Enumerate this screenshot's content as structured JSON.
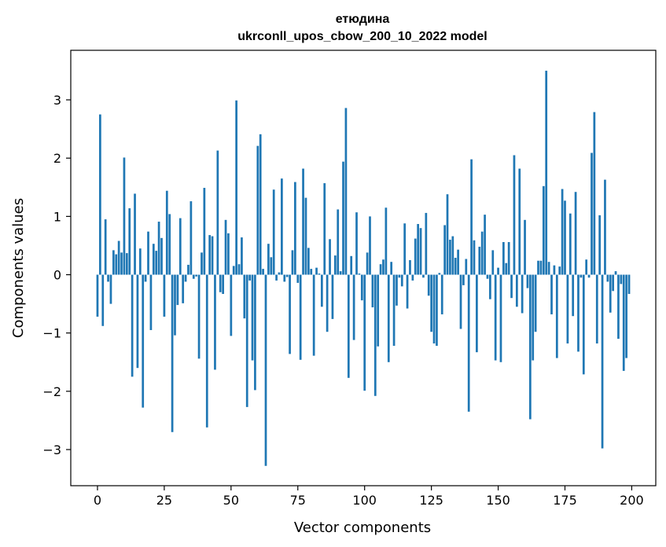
{
  "chart_data": {
    "type": "bar",
    "title_line1": "етюдина",
    "title_line2": "ukrconll_upos_cbow_200_10_2022 model",
    "xlabel": "Vector components",
    "ylabel": "Components values",
    "xlim": [
      -10,
      209
    ],
    "ylim": [
      -3.62,
      3.85
    ],
    "xticks": [
      {
        "value": 0,
        "label": "0"
      },
      {
        "value": 25,
        "label": "25"
      },
      {
        "value": 50,
        "label": "50"
      },
      {
        "value": 75,
        "label": "75"
      },
      {
        "value": 100,
        "label": "100"
      },
      {
        "value": 125,
        "label": "125"
      },
      {
        "value": 150,
        "label": "150"
      },
      {
        "value": 175,
        "label": "175"
      },
      {
        "value": 200,
        "label": "200"
      }
    ],
    "yticks": [
      {
        "value": -3,
        "label": "−3"
      },
      {
        "value": -2,
        "label": "−2"
      },
      {
        "value": -1,
        "label": "−1"
      },
      {
        "value": 0,
        "label": "0"
      },
      {
        "value": 1,
        "label": "1"
      },
      {
        "value": 2,
        "label": "2"
      },
      {
        "value": 3,
        "label": "3"
      }
    ],
    "bar_color": "#1f77b4",
    "values": [
      -0.72,
      2.75,
      -0.88,
      0.95,
      -0.12,
      -0.5,
      0.42,
      0.35,
      0.58,
      0.38,
      2.01,
      0.37,
      1.14,
      -1.75,
      1.39,
      -1.6,
      0.45,
      -2.28,
      -0.12,
      0.74,
      -0.95,
      0.53,
      0.41,
      0.91,
      0.63,
      -0.72,
      1.44,
      1.04,
      -2.7,
      -1.04,
      -0.52,
      0.97,
      -0.49,
      -0.12,
      0.17,
      1.26,
      -0.07,
      -0.03,
      -1.44,
      0.38,
      1.49,
      -2.62,
      0.68,
      0.66,
      -1.63,
      2.13,
      -0.3,
      -0.33,
      0.94,
      0.71,
      -1.05,
      0.15,
      2.99,
      0.18,
      0.64,
      -0.75,
      -2.27,
      -0.1,
      -1.47,
      -1.98,
      2.21,
      2.41,
      0.1,
      -3.28,
      0.53,
      0.3,
      1.46,
      -0.1,
      0.04,
      1.65,
      -0.12,
      -0.04,
      -1.36,
      0.42,
      1.59,
      -0.14,
      -1.46,
      1.82,
      1.32,
      0.46,
      0.1,
      -1.39,
      0.12,
      0.02,
      -0.55,
      1.57,
      -0.98,
      0.61,
      -0.76,
      0.33,
      1.12,
      0.06,
      1.94,
      2.86,
      -1.77,
      0.32,
      -1.12,
      1.07,
      0.02,
      -0.44,
      -1.99,
      0.38,
      1.0,
      -0.56,
      -2.08,
      -1.23,
      0.18,
      0.26,
      1.15,
      -1.5,
      0.22,
      -1.22,
      -0.53,
      -0.05,
      -0.2,
      0.88,
      -0.58,
      0.25,
      -0.1,
      0.62,
      0.87,
      0.8,
      -0.05,
      1.06,
      -0.36,
      -0.98,
      -1.18,
      -1.22,
      0.03,
      -0.68,
      0.85,
      1.38,
      0.6,
      0.66,
      0.29,
      0.43,
      -0.93,
      -0.18,
      0.27,
      -2.35,
      1.98,
      0.59,
      -1.33,
      0.48,
      0.74,
      1.03,
      -0.07,
      -0.42,
      0.42,
      -1.47,
      0.12,
      -1.5,
      0.56,
      0.2,
      0.56,
      -0.4,
      2.05,
      -0.55,
      1.82,
      -0.66,
      0.94,
      -0.23,
      -2.48,
      -1.47,
      -0.98,
      0.24,
      0.24,
      1.52,
      3.5,
      0.22,
      -0.68,
      0.16,
      -1.43,
      0.14,
      1.47,
      1.27,
      -1.18,
      1.05,
      -0.71,
      1.42,
      -1.32,
      -0.05,
      -1.71,
      0.26,
      -0.05,
      2.09,
      2.79,
      -1.18,
      1.02,
      -2.98,
      1.63,
      -0.12,
      -0.65,
      -0.28,
      0.06,
      -1.1,
      -0.16,
      -1.65,
      -1.43,
      -0.33
    ]
  }
}
